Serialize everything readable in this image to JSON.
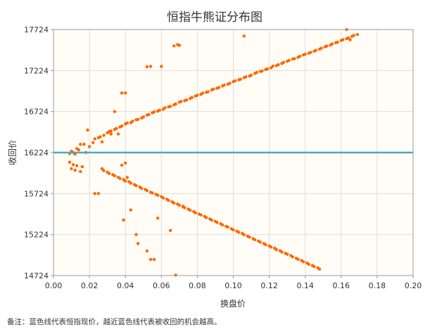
{
  "chart_data": {
    "type": "scatter",
    "title": "恒指牛熊证分布图",
    "xlabel": "换盘价",
    "ylabel": "收回价",
    "xlim": [
      0,
      0.2
    ],
    "ylim": [
      14724,
      17724
    ],
    "x_ticks": [
      "0.00",
      "0.02",
      "0.04",
      "0.06",
      "0.08",
      "0.10",
      "0.12",
      "0.14",
      "0.16",
      "0.18",
      "0.20"
    ],
    "y_ticks": [
      "14724",
      "15224",
      "15724",
      "16224",
      "16724",
      "17224",
      "17724"
    ],
    "grid": true,
    "reference_line": {
      "y": 16224,
      "color": "#4aaabf"
    },
    "marker_color": "#ff6600",
    "plot_background": "#fffdf5",
    "footnote": "备注：蓝色线代表恒指现价，越近蓝色线代表被收回的机会越高。",
    "series": [
      {
        "points": [
          [
            0.009,
            16212
          ],
          [
            0.01,
            16240
          ],
          [
            0.011,
            16224
          ],
          [
            0.012,
            16205
          ],
          [
            0.013,
            16272
          ],
          [
            0.014,
            16257
          ],
          [
            0.015,
            16324
          ],
          [
            0.017,
            16325
          ],
          [
            0.019,
            16498
          ],
          [
            0.02,
            16296
          ],
          [
            0.022,
            16346
          ],
          [
            0.023,
            16391
          ],
          [
            0.025,
            16406
          ],
          [
            0.026,
            16416
          ],
          [
            0.027,
            16354
          ],
          [
            0.028,
            16435
          ],
          [
            0.03,
            16464
          ],
          [
            0.031,
            16480
          ],
          [
            0.032,
            16487
          ],
          [
            0.034,
            16507
          ],
          [
            0.035,
            16518
          ],
          [
            0.037,
            16535
          ],
          [
            0.038,
            16548
          ],
          [
            0.04,
            16573
          ],
          [
            0.041,
            16585
          ],
          [
            0.043,
            16588
          ],
          [
            0.044,
            16606
          ],
          [
            0.046,
            16624
          ],
          [
            0.047,
            16628
          ],
          [
            0.049,
            16646
          ],
          [
            0.05,
            16659
          ],
          [
            0.052,
            16681
          ],
          [
            0.053,
            16687
          ],
          [
            0.055,
            16709
          ],
          [
            0.056,
            16720
          ],
          [
            0.058,
            16729
          ],
          [
            0.059,
            16741
          ],
          [
            0.061,
            16752
          ],
          [
            0.062,
            16770
          ],
          [
            0.064,
            16781
          ],
          [
            0.065,
            16787
          ],
          [
            0.067,
            16805
          ],
          [
            0.068,
            16817
          ],
          [
            0.07,
            16839
          ],
          [
            0.071,
            16847
          ],
          [
            0.073,
            16857
          ],
          [
            0.074,
            16865
          ],
          [
            0.076,
            16883
          ],
          [
            0.077,
            16896
          ],
          [
            0.079,
            16912
          ],
          [
            0.08,
            16923
          ],
          [
            0.082,
            16935
          ],
          [
            0.083,
            16948
          ],
          [
            0.085,
            16959
          ],
          [
            0.086,
            16966
          ],
          [
            0.088,
            16987
          ],
          [
            0.089,
            16998
          ],
          [
            0.091,
            17008
          ],
          [
            0.092,
            17018
          ],
          [
            0.094,
            17036
          ],
          [
            0.095,
            17047
          ],
          [
            0.097,
            17057
          ],
          [
            0.098,
            17069
          ],
          [
            0.1,
            17089
          ],
          [
            0.101,
            17098
          ],
          [
            0.103,
            17110
          ],
          [
            0.104,
            17118
          ],
          [
            0.106,
            17137
          ],
          [
            0.107,
            17147
          ],
          [
            0.109,
            17156
          ],
          [
            0.11,
            17168
          ],
          [
            0.112,
            17188
          ],
          [
            0.113,
            17200
          ],
          [
            0.115,
            17213
          ],
          [
            0.116,
            17218
          ],
          [
            0.118,
            17236
          ],
          [
            0.119,
            17245
          ],
          [
            0.121,
            17258
          ],
          [
            0.122,
            17279
          ],
          [
            0.124,
            17283
          ],
          [
            0.125,
            17295
          ],
          [
            0.127,
            17310
          ],
          [
            0.128,
            17324
          ],
          [
            0.13,
            17337
          ],
          [
            0.131,
            17347
          ],
          [
            0.133,
            17363
          ],
          [
            0.134,
            17369
          ],
          [
            0.136,
            17385
          ],
          [
            0.137,
            17397
          ],
          [
            0.139,
            17415
          ],
          [
            0.14,
            17424
          ],
          [
            0.142,
            17435
          ],
          [
            0.143,
            17446
          ],
          [
            0.145,
            17460
          ],
          [
            0.146,
            17470
          ],
          [
            0.148,
            17486
          ],
          [
            0.149,
            17498
          ],
          [
            0.151,
            17513
          ],
          [
            0.152,
            17523
          ],
          [
            0.154,
            17534
          ],
          [
            0.155,
            17548
          ],
          [
            0.157,
            17563
          ],
          [
            0.158,
            17570
          ],
          [
            0.16,
            17591
          ],
          [
            0.161,
            17600
          ],
          [
            0.163,
            17612
          ],
          [
            0.164,
            17622
          ],
          [
            0.166,
            17640
          ],
          [
            0.167,
            17652
          ],
          [
            0.169,
            17663
          ],
          [
            0.009,
            16107
          ],
          [
            0.01,
            16028
          ],
          [
            0.011,
            16076
          ],
          [
            0.012,
            16008
          ],
          [
            0.013,
            16064
          ],
          [
            0.015,
            15993
          ],
          [
            0.016,
            16052
          ],
          [
            0.027,
            16027
          ],
          [
            0.028,
            16003
          ],
          [
            0.03,
            15985
          ],
          [
            0.031,
            15969
          ],
          [
            0.033,
            15954
          ],
          [
            0.034,
            15940
          ],
          [
            0.036,
            15922
          ],
          [
            0.037,
            15907
          ],
          [
            0.039,
            15895
          ],
          [
            0.04,
            15876
          ],
          [
            0.042,
            15868
          ],
          [
            0.043,
            15850
          ],
          [
            0.045,
            15834
          ],
          [
            0.046,
            15820
          ],
          [
            0.048,
            15804
          ],
          [
            0.049,
            15787
          ],
          [
            0.051,
            15775
          ],
          [
            0.052,
            15760
          ],
          [
            0.054,
            15741
          ],
          [
            0.055,
            15730
          ],
          [
            0.057,
            15715
          ],
          [
            0.058,
            15703
          ],
          [
            0.06,
            15686
          ],
          [
            0.061,
            15670
          ],
          [
            0.063,
            15655
          ],
          [
            0.064,
            15640
          ],
          [
            0.066,
            15623
          ],
          [
            0.067,
            15608
          ],
          [
            0.069,
            15596
          ],
          [
            0.07,
            15581
          ],
          [
            0.072,
            15562
          ],
          [
            0.073,
            15551
          ],
          [
            0.075,
            15535
          ],
          [
            0.076,
            15520
          ],
          [
            0.078,
            15505
          ],
          [
            0.079,
            15489
          ],
          [
            0.081,
            15474
          ],
          [
            0.082,
            15463
          ],
          [
            0.084,
            15446
          ],
          [
            0.085,
            15431
          ],
          [
            0.087,
            15414
          ],
          [
            0.088,
            15400
          ],
          [
            0.09,
            15386
          ],
          [
            0.091,
            15371
          ],
          [
            0.093,
            15356
          ],
          [
            0.094,
            15340
          ],
          [
            0.096,
            15325
          ],
          [
            0.097,
            15315
          ],
          [
            0.099,
            15294
          ],
          [
            0.1,
            15282
          ],
          [
            0.102,
            15266
          ],
          [
            0.103,
            15252
          ],
          [
            0.105,
            15237
          ],
          [
            0.106,
            15221
          ],
          [
            0.108,
            15205
          ],
          [
            0.109,
            15193
          ],
          [
            0.111,
            15175
          ],
          [
            0.112,
            15162
          ],
          [
            0.114,
            15146
          ],
          [
            0.115,
            15131
          ],
          [
            0.117,
            15115
          ],
          [
            0.118,
            15100
          ],
          [
            0.12,
            15086
          ],
          [
            0.121,
            15072
          ],
          [
            0.123,
            15057
          ],
          [
            0.124,
            15040
          ],
          [
            0.126,
            15027
          ],
          [
            0.127,
            15011
          ],
          [
            0.129,
            14996
          ],
          [
            0.13,
            14984
          ],
          [
            0.132,
            14967
          ],
          [
            0.133,
            14952
          ],
          [
            0.135,
            14936
          ],
          [
            0.136,
            14921
          ],
          [
            0.138,
            14907
          ],
          [
            0.139,
            14892
          ],
          [
            0.141,
            14877
          ],
          [
            0.142,
            14862
          ],
          [
            0.144,
            14847
          ],
          [
            0.145,
            14833
          ],
          [
            0.147,
            14819
          ],
          [
            0.148,
            14801
          ],
          [
            0.018,
            16224
          ],
          [
            0.023,
            15724
          ],
          [
            0.025,
            15724
          ],
          [
            0.032,
            16450
          ],
          [
            0.034,
            16724
          ],
          [
            0.036,
            16450
          ],
          [
            0.038,
            16070
          ],
          [
            0.04,
            16095
          ],
          [
            0.041,
            15920
          ],
          [
            0.039,
            15400
          ],
          [
            0.043,
            15524
          ],
          [
            0.046,
            15224
          ],
          [
            0.047,
            15115
          ],
          [
            0.052,
            15024
          ],
          [
            0.054,
            14920
          ],
          [
            0.056,
            14920
          ],
          [
            0.058,
            15424
          ],
          [
            0.065,
            15274
          ],
          [
            0.067,
            17524
          ],
          [
            0.069,
            17540
          ],
          [
            0.07,
            17530
          ],
          [
            0.052,
            17270
          ],
          [
            0.054,
            17274
          ],
          [
            0.06,
            17274
          ],
          [
            0.072,
            15570
          ],
          [
            0.068,
            14730
          ],
          [
            0.038,
            16950
          ],
          [
            0.04,
            16950
          ],
          [
            0.106,
            17644
          ],
          [
            0.165,
            17600
          ],
          [
            0.163,
            17724
          ]
        ]
      }
    ]
  }
}
